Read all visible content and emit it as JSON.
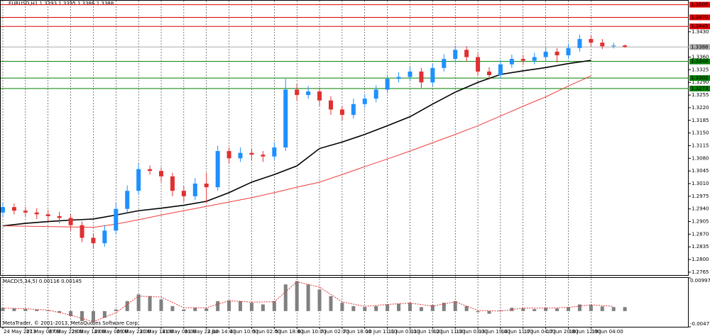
{
  "chart_data": {
    "type": "candlestick",
    "title": "EURUSD,H1  1.3393 1.3395 1.3386 1.3388",
    "footer": "MetaTrader, © 2001-2013, MetaQuotes Software Corp.",
    "bull_color": "#1e90ff",
    "bear_color": "#e03030",
    "ylim": [
      1.2757,
      1.3516
    ],
    "yticks": [
      {
        "value": 1.343,
        "label": "1.3430"
      },
      {
        "value": 1.336,
        "label": "1.3360"
      },
      1.3325,
      {
        "value": 1.329,
        "label": "1.3290"
      },
      1.3255,
      {
        "value": 1.322,
        "label": "1.3220"
      },
      1.3185,
      {
        "value": 1.315,
        "label": "1.3150"
      },
      1.3115,
      {
        "value": 1.308,
        "label": "1.3080"
      },
      1.3045,
      {
        "value": 1.301,
        "label": "1.3010"
      },
      1.2975,
      {
        "value": 1.294,
        "label": "1.2940"
      },
      1.2905,
      {
        "value": 1.287,
        "label": "1.2870"
      },
      1.2835,
      {
        "value": 1.28,
        "label": "1.2800"
      },
      1.2765
    ],
    "grid": true,
    "xlabels": [
      "24 May 2013",
      "27 May 06:00",
      "27 May 22:00",
      "28 May 14:00",
      "29 May 06:00",
      "29 May 22:00",
      "30 May 14:00",
      "31 May 06:00",
      "31 May 22:00",
      "3 Jun 14:00",
      "4 Jun 10:00",
      "5 Jun 02:00",
      "5 Jun 18:00",
      "6 Jun 10:00",
      "7 Jun 02:00",
      "7 Jun 18:00",
      "10 Jun 11:00",
      "11 Jun 03:00",
      "11 Jun 19:00",
      "12 Jun 11:00",
      "13 Jun 03:00",
      "13 Jun 19:00",
      "14 Jun 11:00",
      "17 Jun 04:00",
      "17 Jun 20:00",
      "18 Jun 12:00",
      "19 Jun 04:00"
    ],
    "candles": [
      [
        1.293,
        1.2957,
        1.2918,
        1.2945
      ],
      [
        1.2945,
        1.2955,
        1.2925,
        1.2935
      ],
      [
        1.2935,
        1.2945,
        1.292,
        1.293
      ],
      [
        1.293,
        1.2942,
        1.2912,
        1.2925
      ],
      [
        1.2925,
        1.2937,
        1.2905,
        1.292
      ],
      [
        1.292,
        1.2932,
        1.29,
        1.2915
      ],
      [
        1.2915,
        1.2925,
        1.288,
        1.2895
      ],
      [
        1.2895,
        1.2905,
        1.2848,
        1.286
      ],
      [
        1.286,
        1.2872,
        1.283,
        1.2845
      ],
      [
        1.2845,
        1.2895,
        1.2835,
        1.288
      ],
      [
        1.288,
        1.2955,
        1.287,
        1.294
      ],
      [
        1.294,
        1.3005,
        1.293,
        1.299
      ],
      [
        1.299,
        1.3065,
        1.298,
        1.305
      ],
      [
        1.305,
        1.306,
        1.3035,
        1.3045
      ],
      [
        1.3045,
        1.3055,
        1.3015,
        1.303
      ],
      [
        1.303,
        1.304,
        1.2975,
        1.299
      ],
      [
        1.299,
        1.3002,
        1.296,
        1.2975
      ],
      [
        1.2975,
        1.3025,
        1.2965,
        1.301
      ],
      [
        1.301,
        1.304,
        1.2955,
        1.3
      ],
      [
        1.3,
        1.3115,
        1.299,
        1.31
      ],
      [
        1.31,
        1.311,
        1.3065,
        1.308
      ],
      [
        1.308,
        1.311,
        1.307,
        1.3095
      ],
      [
        1.3095,
        1.3105,
        1.3075,
        1.309
      ],
      [
        1.309,
        1.31,
        1.307,
        1.3085
      ],
      [
        1.3085,
        1.3125,
        1.3075,
        1.311
      ],
      [
        1.311,
        1.33,
        1.31,
        1.327
      ],
      [
        1.327,
        1.3285,
        1.324,
        1.3255
      ],
      [
        1.3255,
        1.328,
        1.3245,
        1.3265
      ],
      [
        1.3265,
        1.3275,
        1.3225,
        1.324
      ],
      [
        1.324,
        1.3252,
        1.32,
        1.3215
      ],
      [
        1.3215,
        1.3225,
        1.3185,
        1.32
      ],
      [
        1.32,
        1.3245,
        1.319,
        1.323
      ],
      [
        1.323,
        1.3258,
        1.322,
        1.3245
      ],
      [
        1.3245,
        1.3282,
        1.3235,
        1.327
      ],
      [
        1.327,
        1.3312,
        1.326,
        1.33
      ],
      [
        1.33,
        1.3318,
        1.329,
        1.3305
      ],
      [
        1.3305,
        1.3332,
        1.3295,
        1.332
      ],
      [
        1.332,
        1.333,
        1.3275,
        1.329
      ],
      [
        1.329,
        1.3342,
        1.328,
        1.333
      ],
      [
        1.333,
        1.3368,
        1.332,
        1.3355
      ],
      [
        1.3355,
        1.3392,
        1.3345,
        1.338
      ],
      [
        1.338,
        1.339,
        1.3348,
        1.336
      ],
      [
        1.336,
        1.337,
        1.3308,
        1.332
      ],
      [
        1.332,
        1.3332,
        1.3298,
        1.331
      ],
      [
        1.331,
        1.3352,
        1.33,
        1.334
      ],
      [
        1.334,
        1.3367,
        1.333,
        1.3355
      ],
      [
        1.3355,
        1.3365,
        1.3338,
        1.335
      ],
      [
        1.335,
        1.3372,
        1.334,
        1.336
      ],
      [
        1.336,
        1.3387,
        1.335,
        1.3375
      ],
      [
        1.3375,
        1.3385,
        1.3345,
        1.3365
      ],
      [
        1.3365,
        1.3397,
        1.3355,
        1.3385
      ],
      [
        1.3385,
        1.3422,
        1.3375,
        1.341
      ],
      [
        1.341,
        1.342,
        1.339,
        1.34
      ],
      [
        1.34,
        1.341,
        1.3382,
        1.339
      ],
      [
        1.339,
        1.34,
        1.3384,
        1.3392
      ],
      [
        1.3392,
        1.3395,
        1.3386,
        1.3388
      ]
    ],
    "moving_averages": [
      {
        "color": "#000000",
        "values": [
          1.2893,
          1.29,
          1.2905,
          1.2909,
          1.2912,
          1.2923,
          1.2935,
          1.2942,
          1.295,
          1.2961,
          1.2985,
          1.3014,
          1.3035,
          1.3059,
          1.3107,
          1.3125,
          1.3146,
          1.317,
          1.3195,
          1.323,
          1.3263,
          1.329,
          1.3312,
          1.3322,
          1.3331,
          1.3342,
          1.3351
        ]
      },
      {
        "color": "#f03c3c",
        "values": [
          1.2893,
          1.2892,
          1.2891,
          1.289,
          1.2889,
          1.2898,
          1.291,
          1.2923,
          1.2935,
          1.2947,
          1.2959,
          1.2971,
          1.2985,
          1.3,
          1.3014,
          1.3035,
          1.3057,
          1.3078,
          1.31,
          1.3123,
          1.3146,
          1.317,
          1.3197,
          1.3224,
          1.325,
          1.328,
          1.3308
        ]
      }
    ],
    "levels": [
      {
        "value": 1.3505,
        "label": "1.3505",
        "color": "#e00000"
      },
      {
        "value": 1.347,
        "label": "1.3470",
        "color": "#e00000"
      },
      {
        "value": 1.3445,
        "label": "1.3445",
        "color": "#e00000"
      },
      {
        "value": 1.3388,
        "label": "1.3388",
        "color": "#aaaaaa"
      },
      {
        "value": 1.3348,
        "label": "1.3348",
        "color": "#008000"
      },
      {
        "value": 1.3302,
        "label": "1.3302",
        "color": "#008000"
      },
      {
        "value": 1.3273,
        "label": "1.3273",
        "color": "#008000"
      }
    ],
    "macd": {
      "label": "MACD(5,34,5) 0.00116 0.00145",
      "ylim": [
        -0.00471,
        0.00997
      ],
      "yticks": [
        0.00997,
        -0.00471
      ],
      "histogram": [
        0.001,
        0.0008,
        0.0006,
        0.0004,
        0.0002,
        -0.0005,
        -0.0015,
        -0.003,
        -0.0035,
        -0.002,
        0.0005,
        0.003,
        0.005,
        0.0045,
        0.0035,
        0.0015,
        0.0005,
        0.001,
        0.0008,
        0.003,
        0.0032,
        0.003,
        0.0025,
        0.002,
        0.003,
        0.008,
        0.009,
        0.008,
        0.0065,
        0.0045,
        0.0025,
        0.0015,
        0.0012,
        0.0015,
        0.002,
        0.0022,
        0.0025,
        0.0012,
        0.0018,
        0.0025,
        0.003,
        0.0015,
        -0.0003,
        -0.0008,
        0.0002,
        0.001,
        0.0008,
        0.0006,
        0.001,
        0.0008,
        0.0012,
        0.002,
        0.0018,
        0.0014,
        0.0012,
        0.0012
      ],
      "signal": [
        0.0009,
        0.0007,
        0.0003,
        -0.0012,
        -0.0032,
        -0.0005,
        0.0045,
        0.0042,
        0.001,
        0.001,
        0.0031,
        0.0027,
        0.0028,
        0.0088,
        0.0072,
        0.0028,
        0.0014,
        0.002,
        0.0024,
        0.0015,
        0.0028,
        0.0002,
        0.0,
        0.0009,
        0.0009,
        0.0011,
        0.0019,
        0.0014
      ],
      "hist_color": "#808080",
      "signal_color": "#e03030"
    }
  }
}
